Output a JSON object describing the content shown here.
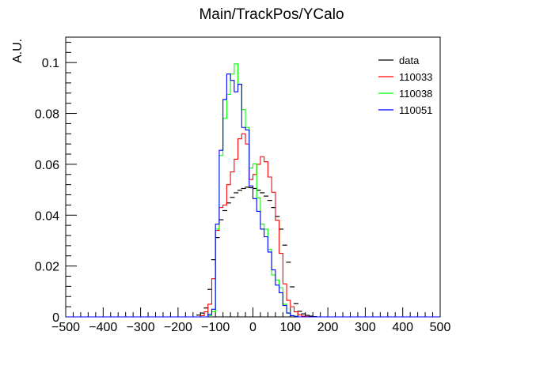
{
  "chart_data": {
    "type": "histogram",
    "title": "Main/TrackPos/YCalo",
    "xlabel": "",
    "ylabel": "A.U.",
    "xlim": [
      -500,
      500
    ],
    "ylim": [
      0,
      0.11
    ],
    "bin_width": 10,
    "grid": false,
    "legend_position": "top-right",
    "x_ticks": [
      -500,
      -400,
      -300,
      -200,
      -100,
      0,
      100,
      200,
      300,
      400,
      500
    ],
    "x_tick_labels": [
      "−500",
      "−400",
      "−300",
      "−200",
      "−100",
      "0",
      "100",
      "200",
      "300",
      "400",
      "500"
    ],
    "y_ticks": [
      0,
      0.02,
      0.04,
      0.06,
      0.08,
      0.1
    ],
    "y_tick_labels": [
      "0",
      "0.02",
      "0.04",
      "0.06",
      "0.08",
      "0.1"
    ],
    "series": [
      {
        "name": "data",
        "style": "markers",
        "color": "#000000",
        "bin_centers": [
          -145,
          -135,
          -125,
          -115,
          -105,
          -95,
          -85,
          -75,
          -65,
          -55,
          -45,
          -35,
          -25,
          -15,
          -5,
          5,
          15,
          25,
          35,
          45,
          55,
          65,
          75,
          85,
          95,
          105,
          115,
          125,
          135,
          145,
          155,
          165
        ],
        "values": [
          0.0007,
          0.0015,
          0.0035,
          0.0108,
          0.0225,
          0.0312,
          0.0382,
          0.0418,
          0.0448,
          0.047,
          0.0488,
          0.0498,
          0.0505,
          0.051,
          0.0508,
          0.0505,
          0.0498,
          0.0488,
          0.0475,
          0.0458,
          0.043,
          0.0395,
          0.0345,
          0.0282,
          0.0215,
          0.0118,
          0.0052,
          0.0022,
          0.0012,
          0.0006,
          0.0003,
          0.0001
        ]
      },
      {
        "name": "110033",
        "style": "step",
        "color": "#ff0000",
        "bin_edges": [
          -150,
          -140,
          -130,
          -120,
          -110,
          -100,
          -90,
          -80,
          -70,
          -60,
          -50,
          -40,
          -30,
          -20,
          -10,
          0,
          10,
          20,
          30,
          40,
          50,
          60,
          70,
          80,
          90,
          100,
          110,
          120,
          130,
          140,
          150,
          160,
          170
        ],
        "values": [
          0.0,
          0.0005,
          0.002,
          0.005,
          0.015,
          0.034,
          0.043,
          0.044,
          0.052,
          0.057,
          0.062,
          0.07,
          0.072,
          0.068,
          0.054,
          0.056,
          0.06,
          0.063,
          0.061,
          0.055,
          0.049,
          0.038,
          0.025,
          0.013,
          0.0065,
          0.004,
          0.002,
          0.0008,
          0.0003,
          0.0001,
          0.0,
          0.0
        ]
      },
      {
        "name": "110038",
        "style": "step",
        "color": "#00ff00",
        "bin_edges": [
          -150,
          -140,
          -130,
          -120,
          -110,
          -100,
          -90,
          -80,
          -70,
          -60,
          -50,
          -40,
          -30,
          -20,
          -10,
          0,
          10,
          20,
          30,
          40,
          50,
          60,
          70,
          80,
          90,
          100,
          110,
          120,
          130,
          140,
          150,
          160,
          170
        ],
        "values": [
          0.0,
          0.0,
          0.0,
          0.0005,
          0.002,
          0.0345,
          0.0635,
          0.078,
          0.0875,
          0.0955,
          0.0995,
          0.0915,
          0.0815,
          0.0745,
          0.0585,
          0.0602,
          0.0468,
          0.0365,
          0.0345,
          0.0265,
          0.0165,
          0.0145,
          0.0115,
          0.005,
          0.0016,
          0.0005,
          0.0002,
          0.0,
          0.0,
          0.0,
          0.0,
          0.0
        ]
      },
      {
        "name": "110051",
        "style": "step",
        "color": "#0000ff",
        "bin_edges": [
          -150,
          -140,
          -130,
          -120,
          -110,
          -100,
          -90,
          -80,
          -70,
          -60,
          -50,
          -40,
          -30,
          -20,
          -10,
          0,
          10,
          20,
          30,
          40,
          50,
          60,
          70,
          80,
          90,
          100,
          110,
          120,
          130,
          140,
          150,
          160,
          170
        ],
        "values": [
          0.0,
          0.0,
          0.0,
          0.001,
          0.003,
          0.0365,
          0.0655,
          0.0855,
          0.0955,
          0.093,
          0.0885,
          0.0915,
          0.0745,
          0.0735,
          0.0515,
          0.0465,
          0.0415,
          0.0345,
          0.0315,
          0.0255,
          0.0185,
          0.0125,
          0.0095,
          0.0045,
          0.0015,
          0.0005,
          0.0002,
          0.0,
          0.0,
          0.0,
          0.0,
          0.0
        ]
      }
    ]
  }
}
